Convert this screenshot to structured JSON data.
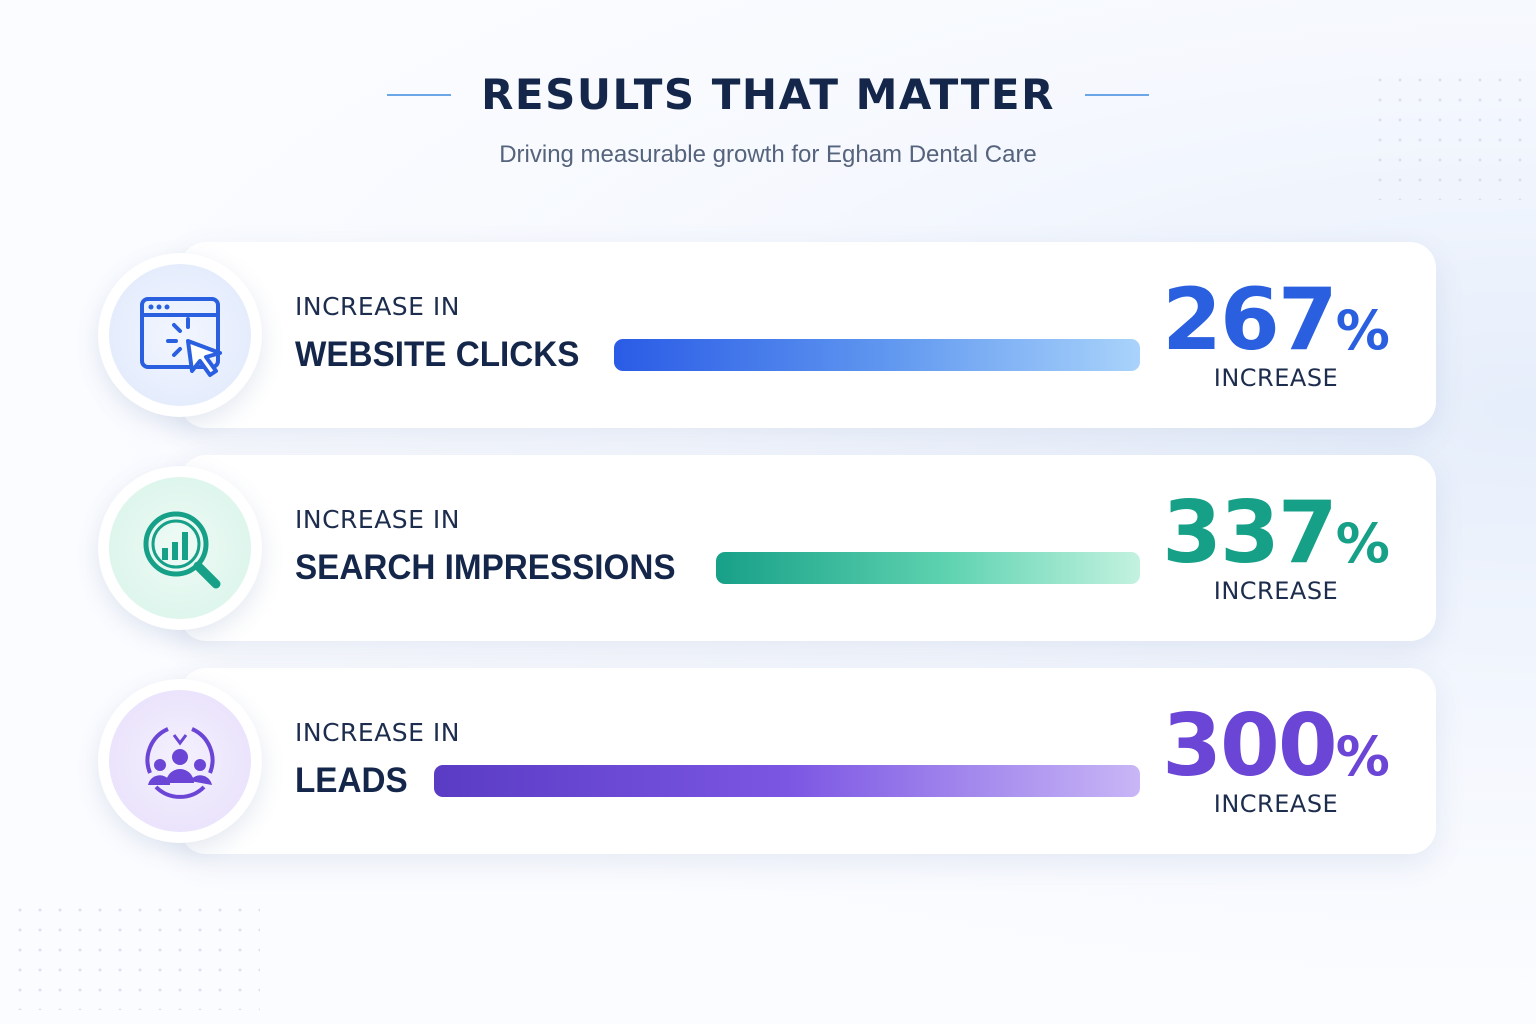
{
  "header": {
    "title": "RESULTS THAT MATTER",
    "subtitle": "Driving measurable growth for Egham Dental Care"
  },
  "metrics": [
    {
      "prefix": "INCREASE IN",
      "label": "WEBSITE CLICKS",
      "value": 267,
      "unit": "%",
      "caption": "INCREASE"
    },
    {
      "prefix": "INCREASE IN",
      "label": "SEARCH IMPRESSIONS",
      "value": 337,
      "unit": "%",
      "caption": "INCREASE"
    },
    {
      "prefix": "INCREASE IN",
      "label": "LEADS",
      "value": 300,
      "unit": "%",
      "caption": "INCREASE"
    }
  ]
}
